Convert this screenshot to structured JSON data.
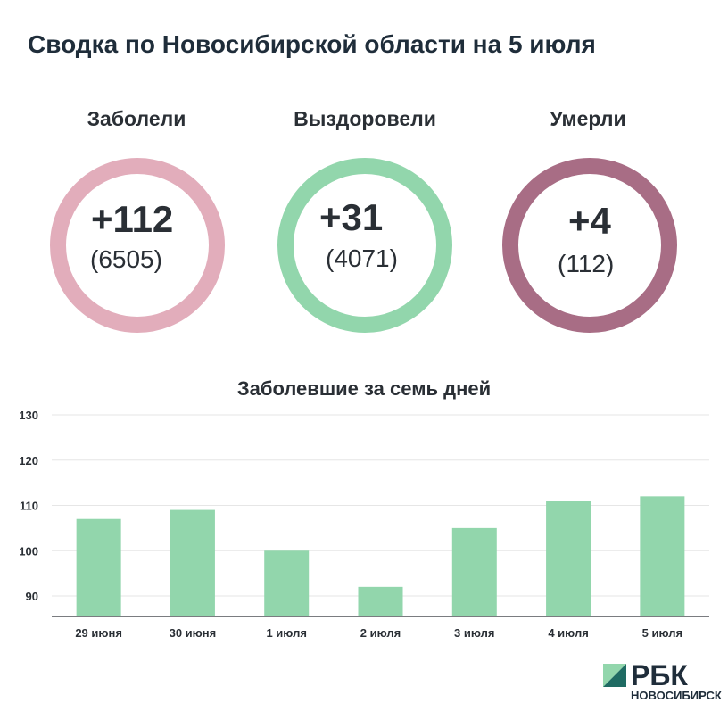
{
  "title": "Сводка по Новосибирской области на 5 июля",
  "stats": [
    {
      "label": "Заболели",
      "delta": "+112",
      "total": "(6505)",
      "color": "#e2adbb"
    },
    {
      "label": "Выздоровели",
      "delta": "+31",
      "total": "(4071)",
      "color": "#92d6ac"
    },
    {
      "label": "Умерли",
      "delta": "+4",
      "total": "(112)",
      "color": "#a86d85"
    }
  ],
  "chart_data": {
    "type": "bar",
    "title": "Заболевшие за семь дней",
    "categories": [
      "29 июня",
      "30 июня",
      "1 июля",
      "2 июля",
      "3 июля",
      "4 июля",
      "5 июля"
    ],
    "values": [
      107,
      109,
      100,
      92,
      105,
      111,
      112
    ],
    "ylim": [
      85,
      130
    ],
    "yticks": [
      90,
      100,
      110,
      120,
      130
    ],
    "bar_color": "#92d6ac",
    "grid": true
  },
  "logo": {
    "main": "РБК",
    "sub": "НОВОСИБИРСК"
  }
}
